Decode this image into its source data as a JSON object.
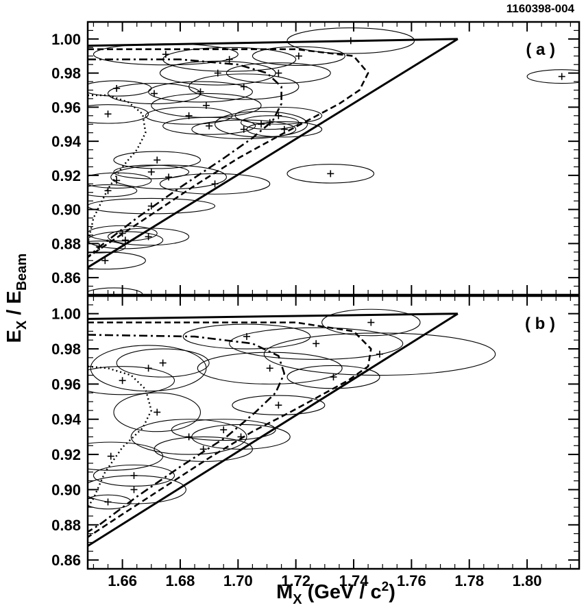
{
  "figure_id": "1160398-004",
  "chart_data": [
    {
      "type": "scatter",
      "panel_label": "( a )",
      "xlim": [
        1.648,
        1.818
      ],
      "ylim": [
        0.85,
        1.01
      ],
      "boundaries": {
        "solid_top": [
          [
            1.648,
            0.996
          ],
          [
            1.776,
            1.0
          ]
        ],
        "solid_lower": [
          [
            1.648,
            0.866
          ],
          [
            1.776,
            1.0
          ]
        ],
        "dashed": [
          [
            1.648,
            0.994
          ],
          [
            1.72,
            0.994
          ],
          [
            1.74,
            0.99
          ],
          [
            1.745,
            0.98
          ],
          [
            1.742,
            0.97
          ],
          [
            1.735,
            0.962
          ],
          [
            1.725,
            0.953
          ],
          [
            1.715,
            0.944
          ],
          [
            1.7,
            0.93
          ],
          [
            1.685,
            0.914
          ],
          [
            1.67,
            0.897
          ],
          [
            1.655,
            0.88
          ],
          [
            1.648,
            0.872
          ]
        ],
        "dash_dot": [
          [
            1.648,
            0.988
          ],
          [
            1.68,
            0.988
          ],
          [
            1.7,
            0.985
          ],
          [
            1.71,
            0.98
          ],
          [
            1.715,
            0.972
          ],
          [
            1.715,
            0.962
          ],
          [
            1.712,
            0.952
          ],
          [
            1.705,
            0.942
          ],
          [
            1.695,
            0.93
          ],
          [
            1.68,
            0.913
          ],
          [
            1.665,
            0.895
          ],
          [
            1.652,
            0.878
          ],
          [
            1.648,
            0.872
          ]
        ],
        "dotted": [
          [
            1.648,
            0.967
          ],
          [
            1.655,
            0.967
          ],
          [
            1.662,
            0.963
          ],
          [
            1.667,
            0.956
          ],
          [
            1.668,
            0.945
          ],
          [
            1.665,
            0.935
          ],
          [
            1.66,
            0.925
          ],
          [
            1.655,
            0.912
          ],
          [
            1.65,
            0.895
          ],
          [
            1.648,
            0.88
          ]
        ]
      },
      "points": [
        {
          "x": 1.675,
          "y": 0.991,
          "sx": 0.025,
          "sy": 0.0062
        },
        {
          "x": 1.697,
          "y": 0.988,
          "sx": 0.023,
          "sy": 0.007
        },
        {
          "x": 1.739,
          "y": 0.999,
          "sx": 0.022,
          "sy": 0.0075
        },
        {
          "x": 1.721,
          "y": 0.99,
          "sx": 0.016,
          "sy": 0.0055
        },
        {
          "x": 1.693,
          "y": 0.98,
          "sx": 0.02,
          "sy": 0.007
        },
        {
          "x": 1.714,
          "y": 0.98,
          "sx": 0.018,
          "sy": 0.006
        },
        {
          "x": 1.702,
          "y": 0.972,
          "sx": 0.019,
          "sy": 0.0075
        },
        {
          "x": 1.671,
          "y": 0.968,
          "sx": 0.016,
          "sy": 0.006
        },
        {
          "x": 1.687,
          "y": 0.969,
          "sx": 0.018,
          "sy": 0.006
        },
        {
          "x": 1.658,
          "y": 0.971,
          "sx": 0.012,
          "sy": 0.0045
        },
        {
          "x": 1.655,
          "y": 0.956,
          "sx": 0.014,
          "sy": 0.0055
        },
        {
          "x": 1.689,
          "y": 0.961,
          "sx": 0.019,
          "sy": 0.007
        },
        {
          "x": 1.683,
          "y": 0.955,
          "sx": 0.015,
          "sy": 0.005
        },
        {
          "x": 1.714,
          "y": 0.955,
          "sx": 0.015,
          "sy": 0.005
        },
        {
          "x": 1.69,
          "y": 0.949,
          "sx": 0.016,
          "sy": 0.005
        },
        {
          "x": 1.708,
          "y": 0.95,
          "sx": 0.016,
          "sy": 0.0075
        },
        {
          "x": 1.711,
          "y": 0.951,
          "sx": 0.01,
          "sy": 0.004
        },
        {
          "x": 1.702,
          "y": 0.947,
          "sx": 0.018,
          "sy": 0.0055
        },
        {
          "x": 1.716,
          "y": 0.947,
          "sx": 0.013,
          "sy": 0.0045
        },
        {
          "x": 1.732,
          "y": 0.921,
          "sx": 0.015,
          "sy": 0.0055
        },
        {
          "x": 1.812,
          "y": 0.978,
          "sx": 0.012,
          "sy": 0.004
        },
        {
          "x": 1.672,
          "y": 0.929,
          "sx": 0.015,
          "sy": 0.005
        },
        {
          "x": 1.67,
          "y": 0.922,
          "sx": 0.013,
          "sy": 0.004
        },
        {
          "x": 1.676,
          "y": 0.919,
          "sx": 0.02,
          "sy": 0.007
        },
        {
          "x": 1.658,
          "y": 0.917,
          "sx": 0.012,
          "sy": 0.0045
        },
        {
          "x": 1.655,
          "y": 0.911,
          "sx": 0.01,
          "sy": 0.0035
        },
        {
          "x": 1.692,
          "y": 0.915,
          "sx": 0.019,
          "sy": 0.006
        },
        {
          "x": 1.67,
          "y": 0.902,
          "sx": 0.022,
          "sy": 0.0045
        },
        {
          "x": 1.66,
          "y": 0.886,
          "sx": 0.012,
          "sy": 0.0045
        },
        {
          "x": 1.661,
          "y": 0.882,
          "sx": 0.013,
          "sy": 0.005
        },
        {
          "x": 1.669,
          "y": 0.884,
          "sx": 0.014,
          "sy": 0.005
        },
        {
          "x": 1.652,
          "y": 0.878,
          "sx": 0.009,
          "sy": 0.0035
        },
        {
          "x": 1.654,
          "y": 0.87,
          "sx": 0.014,
          "sy": 0.005
        },
        {
          "x": 1.657,
          "y": 0.85,
          "sx": 0.01,
          "sy": 0.004
        }
      ]
    },
    {
      "type": "scatter",
      "panel_label": "( b )",
      "xlim": [
        1.648,
        1.818
      ],
      "ylim": [
        0.855,
        1.01
      ],
      "boundaries": {
        "solid_top": [
          [
            1.648,
            0.997
          ],
          [
            1.776,
            1.0
          ]
        ],
        "solid_lower": [
          [
            1.648,
            0.868
          ],
          [
            1.776,
            1.0
          ]
        ],
        "dashed": [
          [
            1.648,
            0.995
          ],
          [
            1.72,
            0.995
          ],
          [
            1.74,
            0.99
          ],
          [
            1.746,
            0.98
          ],
          [
            1.745,
            0.97
          ],
          [
            1.738,
            0.962
          ],
          [
            1.728,
            0.953
          ],
          [
            1.718,
            0.944
          ],
          [
            1.705,
            0.933
          ],
          [
            1.69,
            0.918
          ],
          [
            1.675,
            0.902
          ],
          [
            1.66,
            0.886
          ],
          [
            1.648,
            0.873
          ]
        ],
        "dash_dot": [
          [
            1.648,
            0.988
          ],
          [
            1.685,
            0.987
          ],
          [
            1.705,
            0.983
          ],
          [
            1.714,
            0.976
          ],
          [
            1.716,
            0.966
          ],
          [
            1.713,
            0.955
          ],
          [
            1.706,
            0.944
          ],
          [
            1.696,
            0.93
          ],
          [
            1.68,
            0.913
          ],
          [
            1.665,
            0.896
          ],
          [
            1.652,
            0.88
          ],
          [
            1.648,
            0.876
          ]
        ],
        "dotted": [
          [
            1.648,
            0.97
          ],
          [
            1.655,
            0.969
          ],
          [
            1.663,
            0.965
          ],
          [
            1.668,
            0.957
          ],
          [
            1.67,
            0.945
          ],
          [
            1.667,
            0.935
          ],
          [
            1.66,
            0.924
          ],
          [
            1.654,
            0.91
          ],
          [
            1.65,
            0.895
          ],
          [
            1.648,
            0.89
          ]
        ]
      },
      "points": [
        {
          "x": 1.746,
          "y": 0.995,
          "sx": 0.017,
          "sy": 0.0075
        },
        {
          "x": 1.703,
          "y": 0.987,
          "sx": 0.022,
          "sy": 0.007
        },
        {
          "x": 1.727,
          "y": 0.983,
          "sx": 0.03,
          "sy": 0.009
        },
        {
          "x": 1.749,
          "y": 0.977,
          "sx": 0.04,
          "sy": 0.012
        },
        {
          "x": 1.711,
          "y": 0.969,
          "sx": 0.025,
          "sy": 0.009
        },
        {
          "x": 1.733,
          "y": 0.964,
          "sx": 0.016,
          "sy": 0.0065
        },
        {
          "x": 1.669,
          "y": 0.969,
          "sx": 0.02,
          "sy": 0.013
        },
        {
          "x": 1.674,
          "y": 0.972,
          "sx": 0.016,
          "sy": 0.008
        },
        {
          "x": 1.66,
          "y": 0.962,
          "sx": 0.018,
          "sy": 0.008
        },
        {
          "x": 1.714,
          "y": 0.948,
          "sx": 0.016,
          "sy": 0.0055
        },
        {
          "x": 1.672,
          "y": 0.944,
          "sx": 0.015,
          "sy": 0.011
        },
        {
          "x": 1.695,
          "y": 0.934,
          "sx": 0.018,
          "sy": 0.006
        },
        {
          "x": 1.683,
          "y": 0.93,
          "sx": 0.02,
          "sy": 0.01
        },
        {
          "x": 1.701,
          "y": 0.93,
          "sx": 0.017,
          "sy": 0.007
        },
        {
          "x": 1.688,
          "y": 0.923,
          "sx": 0.017,
          "sy": 0.007
        },
        {
          "x": 1.656,
          "y": 0.919,
          "sx": 0.018,
          "sy": 0.008
        },
        {
          "x": 1.664,
          "y": 0.908,
          "sx": 0.014,
          "sy": 0.006
        },
        {
          "x": 1.655,
          "y": 0.893,
          "sx": 0.008,
          "sy": 0.004
        },
        {
          "x": 1.664,
          "y": 0.9,
          "sx": 0.018,
          "sy": 0.008
        }
      ]
    }
  ],
  "axes": {
    "xlabel_main": "M",
    "xlabel_sub": "X",
    "xlabel_rest": " (GeV / c",
    "xlabel_sup": "2",
    "xlabel_close": ")",
    "ylabel_main": "E",
    "ylabel_sub1": "X",
    "ylabel_mid": " / E",
    "ylabel_sub2": "Beam",
    "x_ticks": [
      "1.66",
      "1.68",
      "1.70",
      "1.72",
      "1.74",
      "1.76",
      "1.78",
      "1.80"
    ],
    "y_ticks": [
      "0.86",
      "0.88",
      "0.90",
      "0.92",
      "0.94",
      "0.96",
      "0.98",
      "1.00"
    ]
  }
}
